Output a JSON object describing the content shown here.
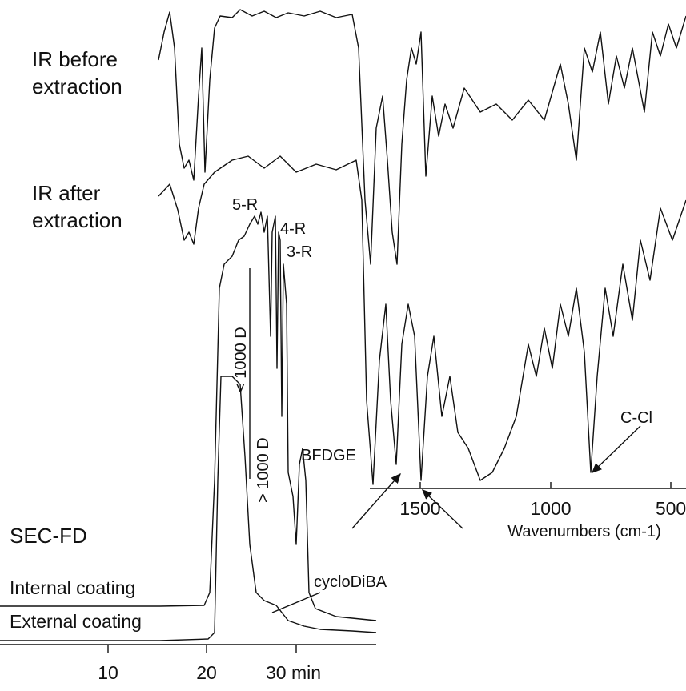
{
  "labels": {
    "ir_before": [
      "IR before",
      "extraction"
    ],
    "ir_after": [
      "IR after",
      "extraction"
    ],
    "peaks": [
      "5-R",
      "4-R",
      "3-R"
    ],
    "below_1000": "< 1000 D",
    "above_1000": "> 1000 D",
    "bfdge": "BFDGE",
    "sec_fd": "SEC-FD",
    "internal": "Internal coating",
    "external": "External coating",
    "cyclodiba": "cycloDiBA",
    "ccl": "C-Cl"
  },
  "ir_axis": {
    "ticks": [
      "1500",
      "1000",
      "500"
    ],
    "title": "Wavenumbers (cm-1)"
  },
  "time_axis": {
    "ticks": [
      "10",
      "20",
      "30 min"
    ]
  }
}
